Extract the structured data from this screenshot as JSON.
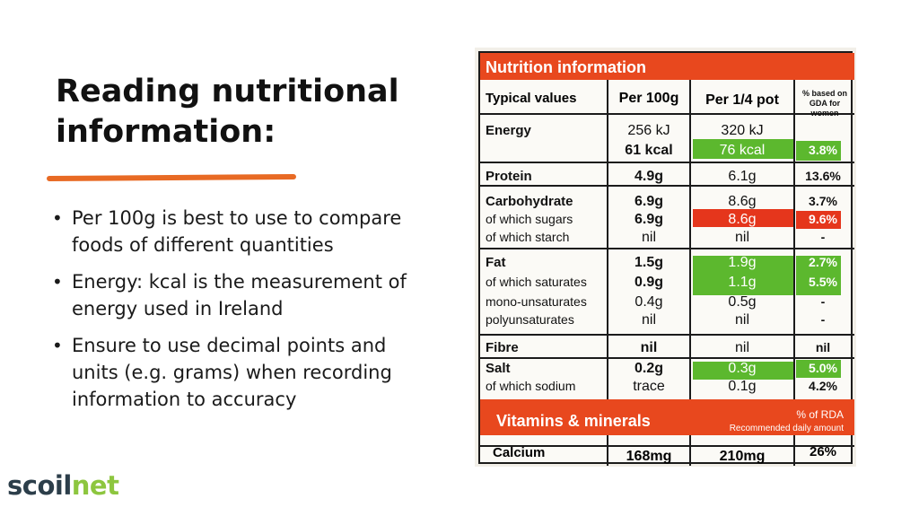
{
  "slide": {
    "title": "Reading nutritional information:",
    "bullets": [
      "Per 100g is best to use to compare foods of different quantities",
      "Energy: kcal is the measurement of energy used in Ireland",
      "Ensure to use decimal points and units (e.g. grams) when recording information to accuracy"
    ],
    "logo": {
      "part1": "scoil",
      "part2": "net"
    },
    "accent_color": "#e86a24"
  },
  "nutrition_label": {
    "header": "Nutrition information",
    "columns": [
      "Typical values",
      "Per 100g",
      "Per 1/4 pot",
      "% based on GDA for women"
    ],
    "rows": [
      {
        "label": "Energy",
        "per100": "256 kJ",
        "perpot": "320 kJ",
        "gda": ""
      },
      {
        "label": "",
        "per100": "61 kcal",
        "perpot": "76 kcal",
        "gda": "3.8%"
      },
      {
        "label": "Protein",
        "per100": "4.9g",
        "perpot": "6.1g",
        "gda": "13.6%"
      },
      {
        "label": "Carbohydrate",
        "per100": "6.9g",
        "perpot": "8.6g",
        "gda": "3.7%"
      },
      {
        "label": "of which sugars",
        "per100": "6.9g",
        "perpot": "8.6g",
        "gda": "9.6%"
      },
      {
        "label": "of which starch",
        "per100": "nil",
        "perpot": "nil",
        "gda": "-"
      },
      {
        "label": "Fat",
        "per100": "1.5g",
        "perpot": "1.9g",
        "gda": "2.7%"
      },
      {
        "label": "of which saturates",
        "per100": "0.9g",
        "perpot": "1.1g",
        "gda": "5.5%"
      },
      {
        "label": "mono-unsaturates",
        "per100": "0.4g",
        "perpot": "0.5g",
        "gda": "-"
      },
      {
        "label": "polyunsaturates",
        "per100": "nil",
        "perpot": "nil",
        "gda": "-"
      },
      {
        "label": "Fibre",
        "per100": "nil",
        "perpot": "nil",
        "gda": "nil"
      },
      {
        "label": "Salt",
        "per100": "0.2g",
        "perpot": "0.3g",
        "gda": "5.0%"
      },
      {
        "label": "of which sodium",
        "per100": "trace",
        "perpot": "0.1g",
        "gda": "4.2%"
      }
    ],
    "vitamins_header": "Vitamins & minerals",
    "rda_label": "% of RDA",
    "rda_sublabel": "Recommended daily amount",
    "calcium": {
      "label": "Calcium",
      "per100": "168mg",
      "perpot": "210mg",
      "gda": "26%"
    },
    "colors": {
      "orange_red": "#e8481e",
      "green": "#5cb82e",
      "red": "#e5361c"
    }
  }
}
